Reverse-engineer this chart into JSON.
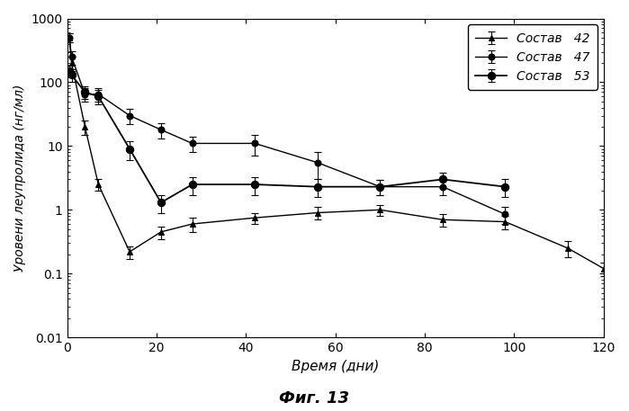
{
  "title": "Фиг. 13",
  "xlabel": "Время (дни)",
  "ylabel": "Уровени леупролида (нг/мл)",
  "series": [
    {
      "label": "Состав   42",
      "marker": "^",
      "mfc": "black",
      "ms": 5,
      "lw": 1.0,
      "x": [
        0.5,
        1,
        4,
        7,
        14,
        21,
        28,
        42,
        56,
        70,
        84,
        98,
        112,
        120
      ],
      "y": [
        500,
        200,
        20,
        2.5,
        0.22,
        0.45,
        0.6,
        0.75,
        0.9,
        1.0,
        0.7,
        0.65,
        0.25,
        0.12
      ],
      "yerr": [
        80,
        50,
        5,
        0.5,
        0.05,
        0.1,
        0.15,
        0.15,
        0.2,
        0.2,
        0.15,
        0.15,
        0.07,
        0.03
      ]
    },
    {
      "label": "Состав   47",
      "marker": "o",
      "mfc": "black",
      "ms": 5,
      "lw": 1.0,
      "x": [
        0.5,
        1,
        4,
        7,
        14,
        21,
        28,
        42,
        56,
        70,
        84,
        98
      ],
      "y": [
        500,
        250,
        65,
        65,
        30,
        18,
        11,
        11,
        5.5,
        2.3,
        2.3,
        0.85
      ],
      "yerr": [
        80,
        60,
        15,
        15,
        8,
        5,
        3,
        4,
        2.5,
        0.6,
        0.6,
        0.25
      ]
    },
    {
      "label": "Состав   53",
      "marker": "o",
      "mfc": "black",
      "ms": 6,
      "lw": 1.3,
      "x": [
        0.5,
        1,
        4,
        7,
        14,
        21,
        28,
        42,
        56,
        70,
        84,
        98
      ],
      "y": [
        150,
        130,
        70,
        60,
        9,
        1.3,
        2.5,
        2.5,
        2.3,
        2.3,
        3.0,
        2.3
      ],
      "yerr": [
        30,
        30,
        15,
        15,
        3,
        0.4,
        0.8,
        0.8,
        0.7,
        0.6,
        0.8,
        0.7
      ]
    }
  ],
  "ylim": [
    0.01,
    1000
  ],
  "xlim": [
    0,
    120
  ],
  "xticks": [
    0,
    20,
    40,
    60,
    80,
    100,
    120
  ],
  "background_color": "#ffffff"
}
